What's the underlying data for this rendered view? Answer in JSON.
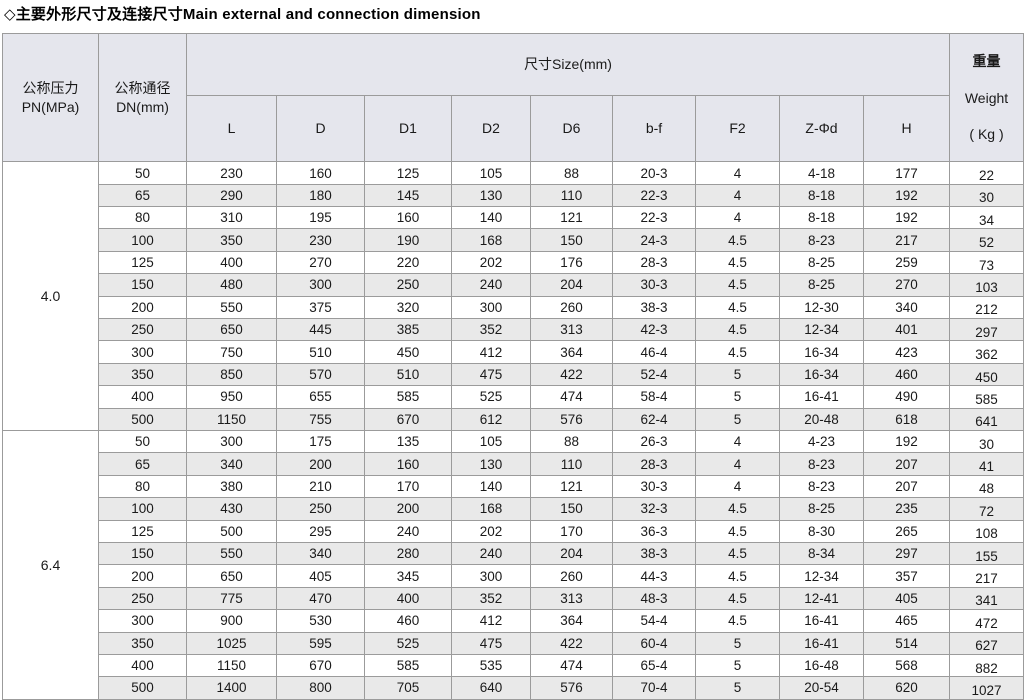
{
  "title": "◇主要外形尺寸及连接尺寸Main external and connection dimension",
  "table": {
    "header": {
      "pn": "公称压力\nPN(MPa)",
      "dn": "公称通径\nDN(mm)",
      "size_group": "尺寸Size(mm)",
      "size_columns": [
        "L",
        "D",
        "D1",
        "D2",
        "D6",
        "b-f",
        "F2",
        "Z-Φd",
        "H"
      ],
      "weight_cn": "重量",
      "weight_en": "Weight",
      "weight_unit": "( Kg )"
    },
    "column_semantics": [
      "dn",
      "l",
      "d",
      "d1",
      "d2",
      "d6",
      "bf",
      "f2",
      "zfd",
      "h",
      "weight"
    ],
    "groups": [
      {
        "pn": "4.0",
        "rows": [
          [
            "50",
            "230",
            "160",
            "125",
            "105",
            "88",
            "20-3",
            "4",
            "4-18",
            "177",
            "22"
          ],
          [
            "65",
            "290",
            "180",
            "145",
            "130",
            "110",
            "22-3",
            "4",
            "8-18",
            "192",
            "30"
          ],
          [
            "80",
            "310",
            "195",
            "160",
            "140",
            "121",
            "22-3",
            "4",
            "8-18",
            "192",
            "34"
          ],
          [
            "100",
            "350",
            "230",
            "190",
            "168",
            "150",
            "24-3",
            "4.5",
            "8-23",
            "217",
            "52"
          ],
          [
            "125",
            "400",
            "270",
            "220",
            "202",
            "176",
            "28-3",
            "4.5",
            "8-25",
            "259",
            "73"
          ],
          [
            "150",
            "480",
            "300",
            "250",
            "240",
            "204",
            "30-3",
            "4.5",
            "8-25",
            "270",
            "103"
          ],
          [
            "200",
            "550",
            "375",
            "320",
            "300",
            "260",
            "38-3",
            "4.5",
            "12-30",
            "340",
            "212"
          ],
          [
            "250",
            "650",
            "445",
            "385",
            "352",
            "313",
            "42-3",
            "4.5",
            "12-34",
            "401",
            "297"
          ],
          [
            "300",
            "750",
            "510",
            "450",
            "412",
            "364",
            "46-4",
            "4.5",
            "16-34",
            "423",
            "362"
          ],
          [
            "350",
            "850",
            "570",
            "510",
            "475",
            "422",
            "52-4",
            "5",
            "16-34",
            "460",
            "450"
          ],
          [
            "400",
            "950",
            "655",
            "585",
            "525",
            "474",
            "58-4",
            "5",
            "16-41",
            "490",
            "585"
          ],
          [
            "500",
            "1150",
            "755",
            "670",
            "612",
            "576",
            "62-4",
            "5",
            "20-48",
            "618",
            "641"
          ]
        ]
      },
      {
        "pn": "6.4",
        "rows": [
          [
            "50",
            "300",
            "175",
            "135",
            "105",
            "88",
            "26-3",
            "4",
            "4-23",
            "192",
            "30"
          ],
          [
            "65",
            "340",
            "200",
            "160",
            "130",
            "110",
            "28-3",
            "4",
            "8-23",
            "207",
            "41"
          ],
          [
            "80",
            "380",
            "210",
            "170",
            "140",
            "121",
            "30-3",
            "4",
            "8-23",
            "207",
            "48"
          ],
          [
            "100",
            "430",
            "250",
            "200",
            "168",
            "150",
            "32-3",
            "4.5",
            "8-25",
            "235",
            "72"
          ],
          [
            "125",
            "500",
            "295",
            "240",
            "202",
            "170",
            "36-3",
            "4.5",
            "8-30",
            "265",
            "108"
          ],
          [
            "150",
            "550",
            "340",
            "280",
            "240",
            "204",
            "38-3",
            "4.5",
            "8-34",
            "297",
            "155"
          ],
          [
            "200",
            "650",
            "405",
            "345",
            "300",
            "260",
            "44-3",
            "4.5",
            "12-34",
            "357",
            "217"
          ],
          [
            "250",
            "775",
            "470",
            "400",
            "352",
            "313",
            "48-3",
            "4.5",
            "12-41",
            "405",
            "341"
          ],
          [
            "300",
            "900",
            "530",
            "460",
            "412",
            "364",
            "54-4",
            "4.5",
            "16-41",
            "465",
            "472"
          ],
          [
            "350",
            "1025",
            "595",
            "525",
            "475",
            "422",
            "60-4",
            "5",
            "16-41",
            "514",
            "627"
          ],
          [
            "400",
            "1150",
            "670",
            "585",
            "535",
            "474",
            "65-4",
            "5",
            "16-48",
            "568",
            "882"
          ],
          [
            "500",
            "1400",
            "800",
            "705",
            "640",
            "576",
            "70-4",
            "5",
            "20-54",
            "620",
            "1027"
          ]
        ]
      }
    ],
    "colors": {
      "header_bg": "#e5e6ed",
      "stripe_bg": "#e9e9e9",
      "border": "#9b9b9b"
    }
  }
}
